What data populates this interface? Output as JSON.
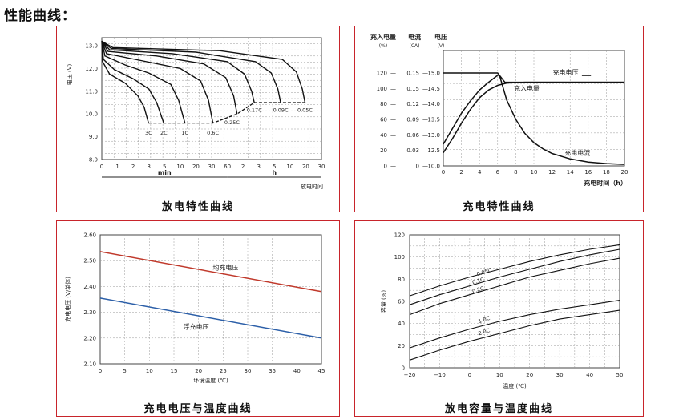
{
  "page": {
    "title": "性能曲线："
  },
  "panels": {
    "discharge": {
      "caption": "放电特性曲线"
    },
    "charge": {
      "caption": "充电特性曲线"
    },
    "charge_temp": {
      "caption": "充电电压与温度曲线"
    },
    "discharge_temp": {
      "caption": "放电容量与温度曲线"
    }
  },
  "chart_data": [
    {
      "id": "discharge",
      "type": "line",
      "ylabel": "电压 (V)",
      "xlabel": "放电时间",
      "ylim": [
        8.0,
        13.0
      ],
      "yticks": [
        8.0,
        9.0,
        10.0,
        11.0,
        12.0,
        13.0
      ],
      "xticks_min": [
        "0",
        "1",
        "2",
        "3",
        "5",
        "10",
        "20",
        "30",
        "60"
      ],
      "xticks_h": [
        "2",
        "3",
        "5",
        "10",
        "20",
        "30"
      ],
      "x_unit_labels": [
        "min",
        "h"
      ],
      "grid": true,
      "cutoff_labels": [
        "3C",
        "2C",
        "1C",
        "0.6C",
        "0.25C",
        "0.17C",
        "0.09C",
        "0.05C"
      ],
      "series": [
        {
          "name": "3C",
          "points": [
            [
              0,
              13.2
            ],
            [
              0.05,
              12.3
            ],
            [
              0.5,
              11.75
            ],
            [
              1.5,
              11.35
            ],
            [
              2.3,
              10.8
            ],
            [
              2.7,
              10.3
            ],
            [
              2.98,
              9.6
            ]
          ]
        },
        {
          "name": "2C",
          "points": [
            [
              0,
              13.2
            ],
            [
              0.1,
              12.4
            ],
            [
              0.8,
              11.95
            ],
            [
              2.0,
              11.55
            ],
            [
              3.0,
              11.1
            ],
            [
              3.5,
              10.5
            ],
            [
              3.95,
              9.6
            ]
          ]
        },
        {
          "name": "1C",
          "points": [
            [
              0,
              13.2
            ],
            [
              0.2,
              12.55
            ],
            [
              1.5,
              12.15
            ],
            [
              3.0,
              11.8
            ],
            [
              4.4,
              11.3
            ],
            [
              4.9,
              10.6
            ],
            [
              5.3,
              9.6
            ]
          ]
        },
        {
          "name": "0.6C",
          "points": [
            [
              0,
              13.2
            ],
            [
              0.3,
              12.65
            ],
            [
              2.5,
              12.35
            ],
            [
              5.0,
              12.0
            ],
            [
              6.3,
              11.45
            ],
            [
              6.8,
              10.6
            ],
            [
              7.08,
              9.6
            ]
          ]
        },
        {
          "name": "0.25C",
          "points": [
            [
              0,
              13.2
            ],
            [
              0.4,
              12.75
            ],
            [
              3.5,
              12.55
            ],
            [
              6.5,
              12.2
            ],
            [
              7.9,
              11.6
            ],
            [
              8.4,
              10.8
            ],
            [
              8.62,
              10.0
            ]
          ]
        },
        {
          "name": "0.17C",
          "points": [
            [
              0,
              13.2
            ],
            [
              0.5,
              12.82
            ],
            [
              4.5,
              12.65
            ],
            [
              8.0,
              12.3
            ],
            [
              9.1,
              11.75
            ],
            [
              9.55,
              11.0
            ],
            [
              9.72,
              10.5
            ]
          ]
        },
        {
          "name": "0.09C",
          "points": [
            [
              0,
              13.2
            ],
            [
              0.6,
              12.88
            ],
            [
              6.0,
              12.72
            ],
            [
              9.8,
              12.3
            ],
            [
              10.8,
              11.8
            ],
            [
              11.22,
              11.1
            ],
            [
              11.4,
              10.5
            ]
          ]
        },
        {
          "name": "0.05C",
          "points": [
            [
              0,
              13.2
            ],
            [
              0.7,
              12.92
            ],
            [
              7.5,
              12.78
            ],
            [
              11.5,
              12.4
            ],
            [
              12.4,
              11.85
            ],
            [
              12.78,
              11.1
            ],
            [
              12.95,
              10.5
            ]
          ]
        }
      ]
    },
    {
      "id": "charge",
      "type": "line",
      "col_headers": [
        {
          "name": "充入电量",
          "unit": "(%)"
        },
        {
          "name": "电流",
          "unit": "(CA)"
        },
        {
          "name": "电压",
          "unit": "(V)"
        }
      ],
      "y_left": [
        "120",
        "100",
        "80",
        "60",
        "40",
        "20",
        "0"
      ],
      "y_mid": [
        "0.15",
        "0.15",
        "0.12",
        "0.09",
        "0.06",
        "0.03",
        "0"
      ],
      "y_right": [
        "15.0",
        "14.5",
        "14.0",
        "13.5",
        "13.0",
        "12.5",
        "10.0"
      ],
      "xlabel": "充电时间（h）",
      "xlim": [
        0,
        20
      ],
      "xticks": [
        "0",
        "2",
        "4",
        "6",
        "8",
        "10",
        "12",
        "14",
        "16",
        "18",
        "20"
      ],
      "grid": true,
      "series": [
        {
          "name": "充电电压",
          "points": [
            [
              0,
              120
            ],
            [
              6,
              120
            ],
            [
              6.8,
              108
            ],
            [
              20,
              108
            ]
          ]
        },
        {
          "name": "充入电量",
          "points": [
            [
              0,
              17
            ],
            [
              1,
              35
            ],
            [
              2,
              55
            ],
            [
              3,
              73
            ],
            [
              4,
              88
            ],
            [
              5,
              98
            ],
            [
              6,
              104
            ],
            [
              7,
              107
            ],
            [
              9,
              108
            ],
            [
              12,
              108
            ],
            [
              20,
              108
            ]
          ]
        },
        {
          "name": "充电电流",
          "points": [
            [
              0,
              28
            ],
            [
              1,
              48
            ],
            [
              2,
              68
            ],
            [
              3,
              84
            ],
            [
              4,
              98
            ],
            [
              5,
              108
            ],
            [
              6,
              117
            ],
            [
              6.2,
              117
            ],
            [
              7,
              85
            ],
            [
              8,
              60
            ],
            [
              9,
              42
            ],
            [
              10,
              30
            ],
            [
              11,
              22
            ],
            [
              12,
              16
            ],
            [
              14,
              9
            ],
            [
              16,
              5
            ],
            [
              18,
              3
            ],
            [
              20,
              2
            ]
          ]
        }
      ]
    },
    {
      "id": "charge_temp",
      "type": "line",
      "ylabel": "充电电压 (V/单体)",
      "xlabel": "环境温度 (℃)",
      "xlim": [
        0,
        45
      ],
      "ylim": [
        2.1,
        2.6
      ],
      "xticks": [
        "0",
        "5",
        "10",
        "15",
        "20",
        "25",
        "30",
        "35",
        "40",
        "45"
      ],
      "yticks": [
        "2.10",
        "2.20",
        "2.30",
        "2.40",
        "2.50",
        "2.60"
      ],
      "grid": true,
      "series": [
        {
          "name": "均充电压",
          "color": "#c0392b",
          "points": [
            [
              0,
              2.535
            ],
            [
              45,
              2.38
            ]
          ]
        },
        {
          "name": "浮充电压",
          "color": "#2c5fa8",
          "points": [
            [
              0,
              2.355
            ],
            [
              45,
              2.2
            ]
          ]
        }
      ]
    },
    {
      "id": "discharge_temp",
      "type": "line",
      "ylabel": "容量 (%)",
      "xlabel": "温度 (℃)",
      "xlim": [
        -20,
        50
      ],
      "ylim": [
        0,
        120
      ],
      "xticks": [
        "−20",
        "−10",
        "0",
        "10",
        "20",
        "30",
        "40",
        "50"
      ],
      "yticks": [
        "0",
        "20",
        "40",
        "60",
        "80",
        "100",
        "120"
      ],
      "grid": true,
      "series": [
        {
          "name": "0.05C",
          "points": [
            [
              -20,
              65
            ],
            [
              -10,
              74
            ],
            [
              0,
              82
            ],
            [
              10,
              89
            ],
            [
              20,
              96
            ],
            [
              30,
              102
            ],
            [
              40,
              107
            ],
            [
              50,
              111
            ]
          ]
        },
        {
          "name": "0.1C",
          "points": [
            [
              -20,
              57
            ],
            [
              -10,
              66
            ],
            [
              0,
              74
            ],
            [
              10,
              82
            ],
            [
              20,
              89
            ],
            [
              30,
              96
            ],
            [
              40,
              102
            ],
            [
              50,
              107
            ]
          ]
        },
        {
          "name": "0.2C",
          "points": [
            [
              -20,
              48
            ],
            [
              -10,
              58
            ],
            [
              0,
              66
            ],
            [
              10,
              74
            ],
            [
              20,
              82
            ],
            [
              30,
              88
            ],
            [
              40,
              94
            ],
            [
              50,
              99
            ]
          ]
        },
        {
          "name": "1.0C",
          "points": [
            [
              -20,
              18
            ],
            [
              -10,
              27
            ],
            [
              0,
              35
            ],
            [
              10,
              42
            ],
            [
              20,
              48
            ],
            [
              30,
              53
            ],
            [
              40,
              57
            ],
            [
              50,
              61
            ]
          ]
        },
        {
          "name": "2.0C",
          "points": [
            [
              -20,
              7
            ],
            [
              -10,
              16
            ],
            [
              0,
              24
            ],
            [
              10,
              31
            ],
            [
              20,
              38
            ],
            [
              30,
              44
            ],
            [
              40,
              48
            ],
            [
              50,
              52
            ]
          ]
        }
      ]
    }
  ]
}
